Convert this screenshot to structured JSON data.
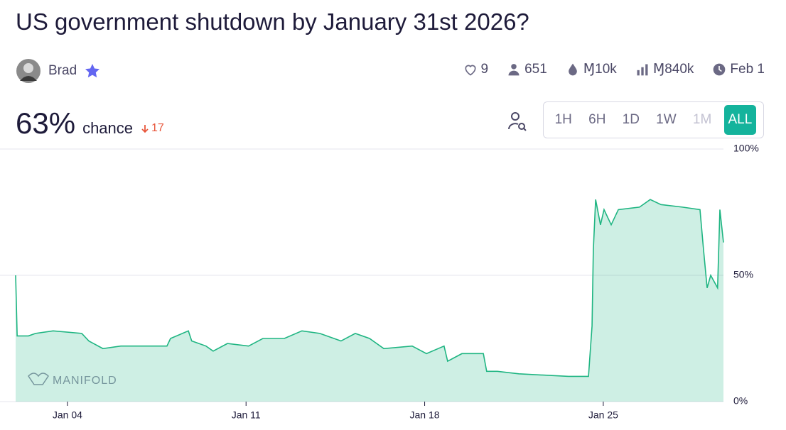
{
  "header": {
    "title": "US government shutdown by January 31st 2026?",
    "author": "Brad",
    "likes": "9",
    "traders": "651",
    "liquidity": "Ɱ10k",
    "volume": "Ɱ840k",
    "close_date": "Feb 1",
    "probability": "63%",
    "probability_word": "chance",
    "change": "17",
    "time_buttons": [
      "1H",
      "6H",
      "1D",
      "1W",
      "1M",
      "ALL"
    ]
  },
  "chart_data": {
    "type": "area",
    "watermark": "MANIFOLD",
    "color": "#1fb582",
    "x": [
      1.97,
      2.03,
      2.47,
      2.75,
      3.44,
      4.56,
      4.84,
      5.39,
      6.09,
      7.9,
      8.04,
      8.74,
      8.87,
      9.43,
      9.71,
      10.27,
      11.1,
      11.66,
      12.5,
      13.19,
      13.89,
      14.72,
      15.28,
      15.84,
      16.4,
      17.51,
      18.07,
      18.76,
      18.9,
      19.46,
      20.3,
      20.43,
      20.85,
      21.69,
      23.64,
      24.42,
      24.56,
      24.61,
      24.7,
      24.89,
      25.03,
      25.31,
      25.59,
      26.42,
      26.84,
      27.26,
      28.1,
      28.79,
      28.93,
      29.07,
      29.21,
      29.48,
      29.57,
      29.71
    ],
    "series": [
      {
        "values": [
          50,
          26,
          26,
          27,
          28,
          27,
          24,
          21,
          22,
          22,
          25,
          28,
          24,
          22,
          20,
          23,
          22,
          25,
          25,
          28,
          27,
          24,
          27,
          25,
          21,
          22,
          19,
          22,
          16,
          19,
          19,
          12,
          12,
          11,
          10,
          10,
          30,
          60,
          80,
          70,
          76,
          70,
          76,
          77,
          80,
          78,
          77,
          76,
          60,
          45,
          50,
          45,
          76,
          63
        ]
      }
    ],
    "xlim": [
      1.97,
      29.71
    ],
    "xticks": [
      {
        "value": 4,
        "label": "Jan 04"
      },
      {
        "value": 11,
        "label": "Jan 11"
      },
      {
        "value": 18,
        "label": "Jan 18"
      },
      {
        "value": 25,
        "label": "Jan 25"
      }
    ],
    "ylim": [
      0,
      100
    ],
    "yticks": [
      {
        "value": 0,
        "label": "0%"
      },
      {
        "value": 50,
        "label": "50%"
      },
      {
        "value": 100,
        "label": "100%"
      }
    ],
    "grid": true
  }
}
